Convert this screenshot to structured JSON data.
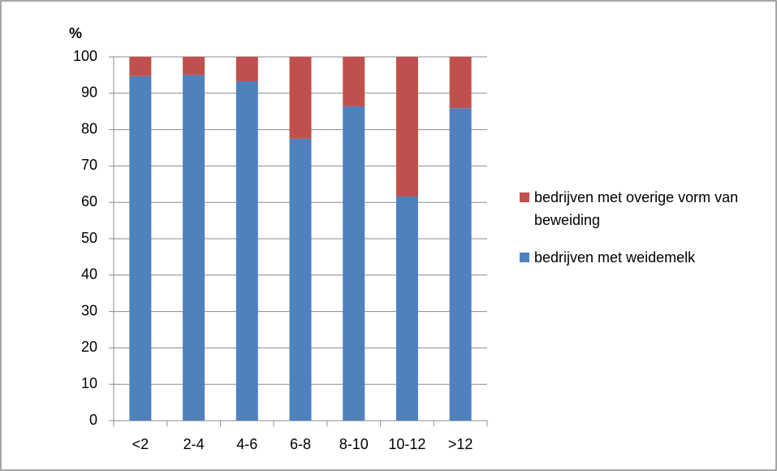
{
  "chart_data": {
    "type": "stacked-bar",
    "y_label": "%",
    "categories": [
      "<2",
      "2-4",
      "4-6",
      "6-8",
      "8-10",
      "10-12",
      ">12"
    ],
    "series": [
      {
        "name": "bedrijven met weidemelk",
        "color": "#4f81bd",
        "values": [
          94.7,
          95,
          93.3,
          77.5,
          86.4,
          61.6,
          85.9
        ]
      },
      {
        "name": "bedrijven met overige vorm van beweiding",
        "color": "#c0504d",
        "values": [
          5.3,
          5,
          6.7,
          22.5,
          13.6,
          38.4,
          14.1
        ]
      }
    ],
    "ylim": [
      0,
      100
    ],
    "yticks": [
      0,
      10,
      20,
      30,
      40,
      50,
      60,
      70,
      80,
      90,
      100
    ],
    "grid": true,
    "legend": "right"
  }
}
